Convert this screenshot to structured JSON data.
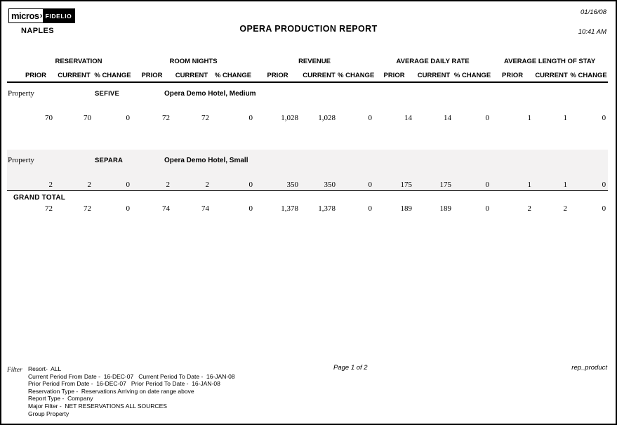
{
  "header": {
    "logo": {
      "left": "micros",
      "chevron": "›",
      "right": "FIDELIO"
    },
    "property_name": "NAPLES",
    "title": "OPERA PRODUCTION REPORT",
    "date": "01/16/08",
    "time": "10:41 AM"
  },
  "table": {
    "groups": [
      {
        "label": "RESERVATION"
      },
      {
        "label": "ROOM NIGHTS"
      },
      {
        "label": "REVENUE"
      },
      {
        "label": "AVERAGE DAILY RATE"
      },
      {
        "label": "AVERAGE LENGTH OF STAY"
      }
    ],
    "sub_columns": [
      "PRIOR",
      "CURRENT",
      "% CHANGE"
    ],
    "sections": [
      {
        "row_label": "Property",
        "code": "SEFIVE",
        "name": "Opera Demo Hotel, Medium",
        "shaded": false,
        "values": [
          "70",
          "70",
          "0",
          "72",
          "72",
          "0",
          "1,028",
          "1,028",
          "0",
          "14",
          "14",
          "0",
          "1",
          "1",
          "0"
        ]
      },
      {
        "row_label": "Property",
        "code": "SEPARA",
        "name": "Opera Demo Hotel, Small",
        "shaded": true,
        "values": [
          "2",
          "2",
          "0",
          "2",
          "2",
          "0",
          "350",
          "350",
          "0",
          "175",
          "175",
          "0",
          "1",
          "1",
          "0"
        ]
      }
    ],
    "grand_total": {
      "label": "GRAND TOTAL",
      "values": [
        "72",
        "72",
        "0",
        "74",
        "74",
        "0",
        "1,378",
        "1,378",
        "0",
        "189",
        "189",
        "0",
        "2",
        "2",
        "0"
      ]
    }
  },
  "footer": {
    "filter_label": "Filter",
    "filter_lines": [
      "Resort-  ALL",
      "Current Period From Date -  16-DEC-07   Current Period To Date -  16-JAN-08",
      "Prior Period From Date -  16-DEC-07   Prior Period To Date -  16-JAN-08",
      "Reservation Type -  Reservations Arriving on date range above",
      "Report Type -  Company",
      "Major Filter -  NET RESERVATIONS ALL SOURCES",
      "Group Property"
    ],
    "page": "Page 1 of 2",
    "report_id": "rep_product"
  },
  "colors": {
    "shade": "#f3f2f2",
    "line": "#000000"
  }
}
